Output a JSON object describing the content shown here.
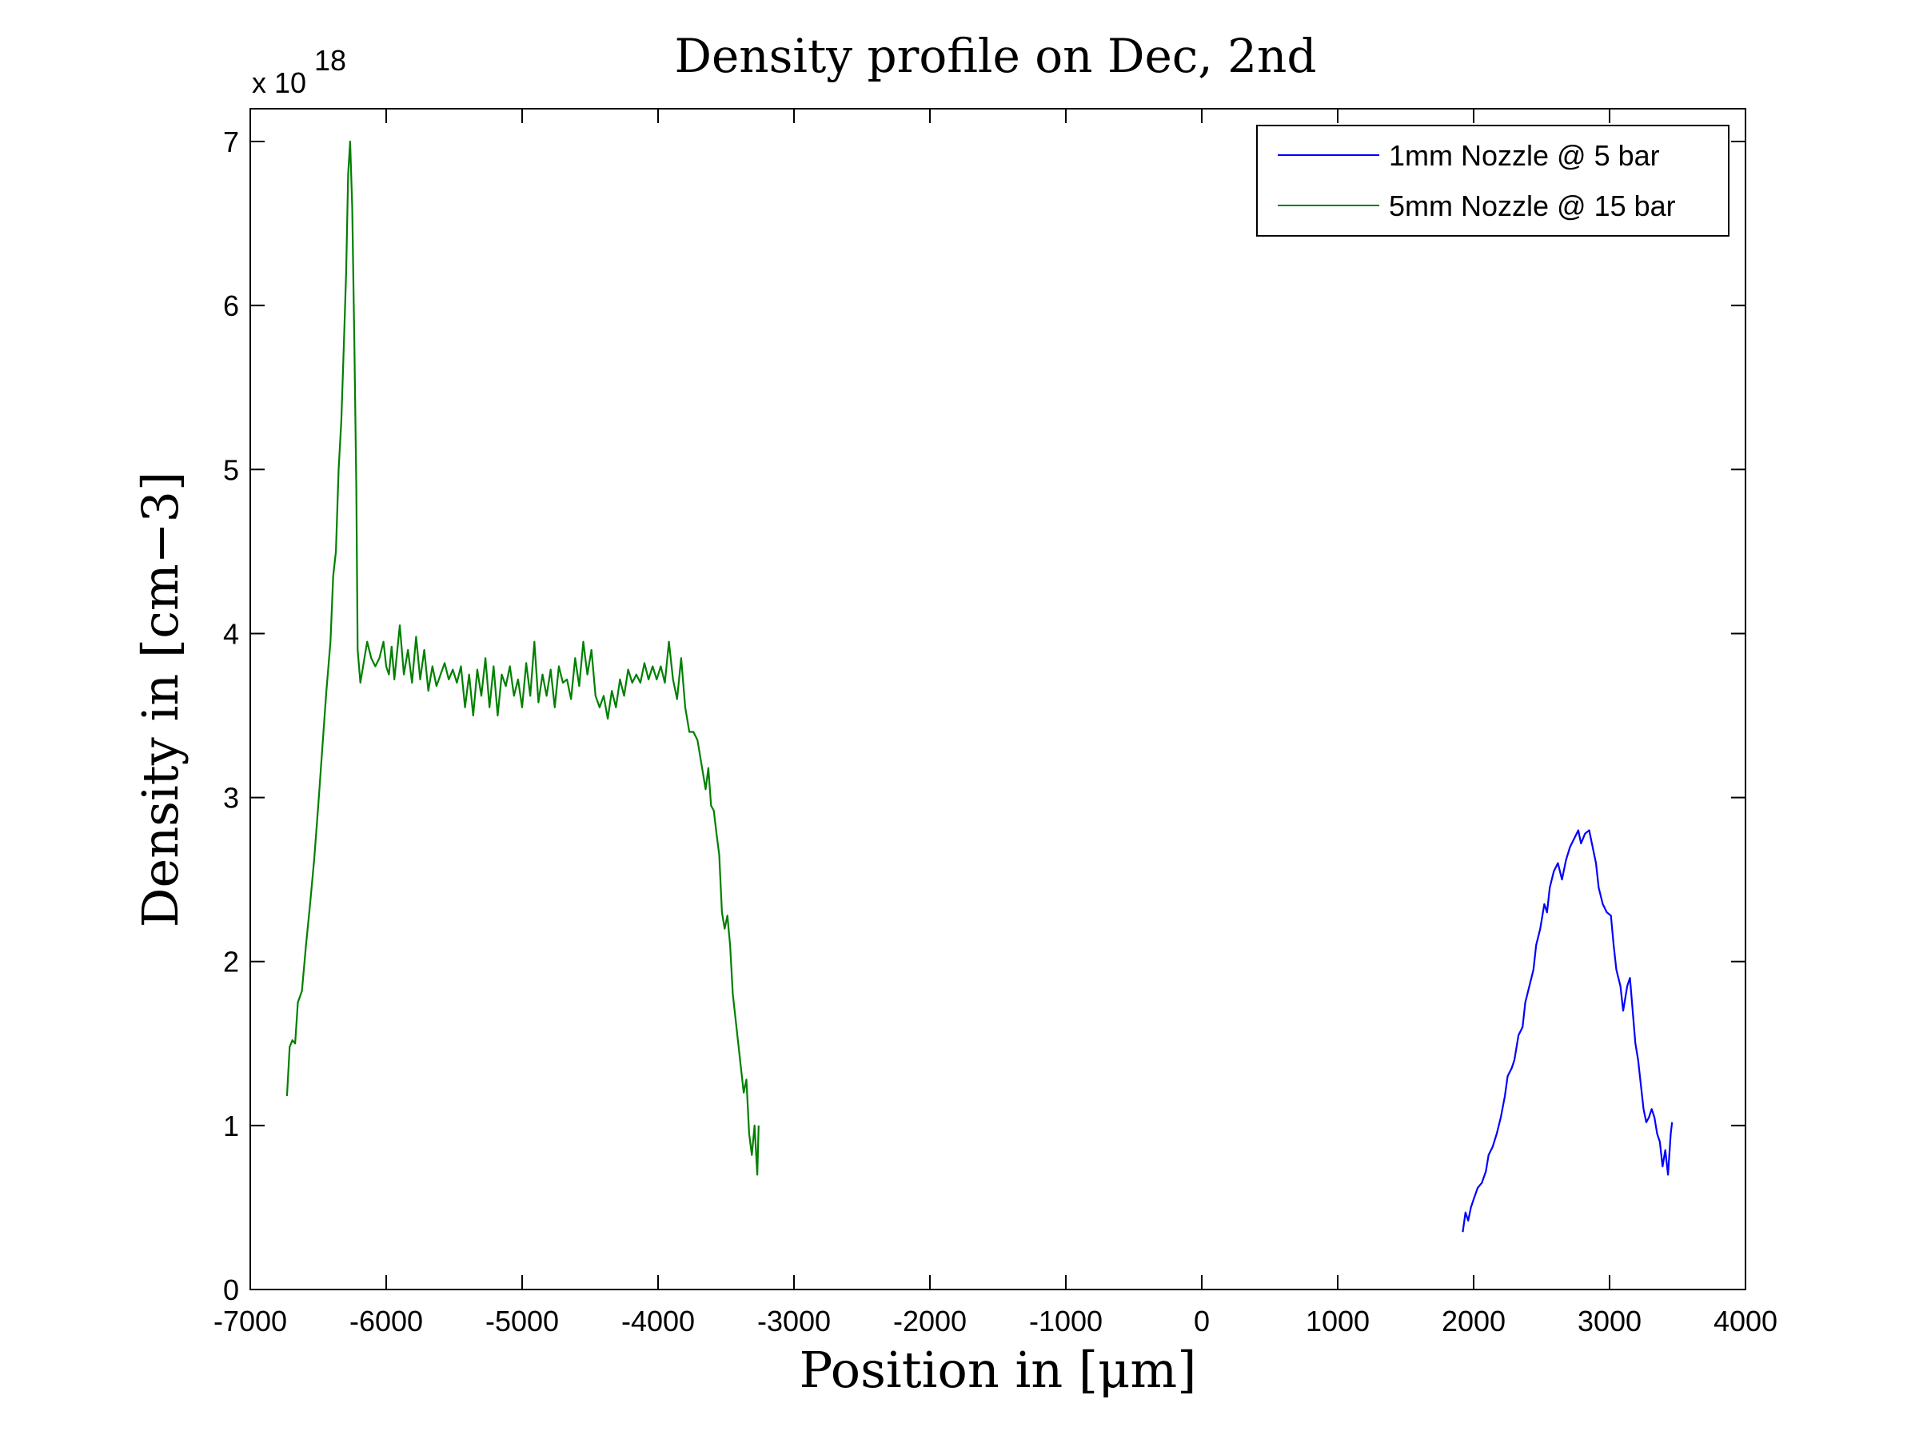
{
  "chart_data": {
    "type": "line",
    "title": "Density profile on Dec, 2nd",
    "xlabel": "Position in [μm]",
    "ylabel": "Density in [cm−3]",
    "y_exponent_label": "x 10",
    "y_exponent_power": "18",
    "xlim": [
      -7000,
      4000
    ],
    "ylim": [
      0,
      7.2
    ],
    "xticks": [
      -7000,
      -6000,
      -5000,
      -4000,
      -3000,
      -2000,
      -1000,
      0,
      1000,
      2000,
      3000,
      4000
    ],
    "yticks": [
      0,
      1,
      2,
      3,
      4,
      5,
      6,
      7
    ],
    "legend_position": "top-right",
    "grid": false,
    "series": [
      {
        "name": "1mm Nozzle @ 5 bar",
        "color": "#0000ff",
        "points": [
          [
            1920,
            0.35
          ],
          [
            1940,
            0.47
          ],
          [
            1960,
            0.42
          ],
          [
            1980,
            0.5
          ],
          [
            2000,
            0.55
          ],
          [
            2030,
            0.62
          ],
          [
            2060,
            0.65
          ],
          [
            2090,
            0.72
          ],
          [
            2110,
            0.82
          ],
          [
            2140,
            0.87
          ],
          [
            2170,
            0.95
          ],
          [
            2200,
            1.05
          ],
          [
            2230,
            1.18
          ],
          [
            2250,
            1.3
          ],
          [
            2280,
            1.35
          ],
          [
            2300,
            1.4
          ],
          [
            2330,
            1.55
          ],
          [
            2360,
            1.6
          ],
          [
            2380,
            1.75
          ],
          [
            2410,
            1.85
          ],
          [
            2440,
            1.95
          ],
          [
            2460,
            2.1
          ],
          [
            2490,
            2.2
          ],
          [
            2520,
            2.35
          ],
          [
            2540,
            2.3
          ],
          [
            2560,
            2.45
          ],
          [
            2590,
            2.55
          ],
          [
            2620,
            2.6
          ],
          [
            2650,
            2.5
          ],
          [
            2680,
            2.62
          ],
          [
            2710,
            2.7
          ],
          [
            2740,
            2.75
          ],
          [
            2770,
            2.8
          ],
          [
            2790,
            2.72
          ],
          [
            2820,
            2.78
          ],
          [
            2850,
            2.8
          ],
          [
            2870,
            2.72
          ],
          [
            2900,
            2.6
          ],
          [
            2920,
            2.45
          ],
          [
            2950,
            2.35
          ],
          [
            2980,
            2.3
          ],
          [
            3010,
            2.28
          ],
          [
            3030,
            2.1
          ],
          [
            3050,
            1.95
          ],
          [
            3080,
            1.85
          ],
          [
            3100,
            1.7
          ],
          [
            3130,
            1.85
          ],
          [
            3150,
            1.9
          ],
          [
            3170,
            1.7
          ],
          [
            3190,
            1.5
          ],
          [
            3210,
            1.4
          ],
          [
            3230,
            1.25
          ],
          [
            3250,
            1.1
          ],
          [
            3270,
            1.02
          ],
          [
            3290,
            1.05
          ],
          [
            3310,
            1.1
          ],
          [
            3330,
            1.05
          ],
          [
            3350,
            0.95
          ],
          [
            3370,
            0.9
          ],
          [
            3390,
            0.75
          ],
          [
            3410,
            0.85
          ],
          [
            3430,
            0.7
          ],
          [
            3450,
            0.95
          ],
          [
            3460,
            1.02
          ]
        ]
      },
      {
        "name": "5mm Nozzle @ 15 bar",
        "color": "#008000",
        "points": [
          [
            -6730,
            1.18
          ],
          [
            -6710,
            1.48
          ],
          [
            -6690,
            1.52
          ],
          [
            -6670,
            1.5
          ],
          [
            -6650,
            1.75
          ],
          [
            -6620,
            1.82
          ],
          [
            -6590,
            2.1
          ],
          [
            -6560,
            2.35
          ],
          [
            -6530,
            2.62
          ],
          [
            -6500,
            2.95
          ],
          [
            -6470,
            3.3
          ],
          [
            -6440,
            3.65
          ],
          [
            -6410,
            3.95
          ],
          [
            -6390,
            4.35
          ],
          [
            -6370,
            4.5
          ],
          [
            -6350,
            5.0
          ],
          [
            -6330,
            5.3
          ],
          [
            -6310,
            5.8
          ],
          [
            -6295,
            6.2
          ],
          [
            -6280,
            6.8
          ],
          [
            -6265,
            7.0
          ],
          [
            -6250,
            6.6
          ],
          [
            -6235,
            5.8
          ],
          [
            -6220,
            4.9
          ],
          [
            -6210,
            3.9
          ],
          [
            -6190,
            3.7
          ],
          [
            -6170,
            3.8
          ],
          [
            -6140,
            3.95
          ],
          [
            -6110,
            3.85
          ],
          [
            -6080,
            3.8
          ],
          [
            -6050,
            3.85
          ],
          [
            -6020,
            3.95
          ],
          [
            -6000,
            3.8
          ],
          [
            -5980,
            3.75
          ],
          [
            -5960,
            3.92
          ],
          [
            -5940,
            3.72
          ],
          [
            -5900,
            4.05
          ],
          [
            -5870,
            3.75
          ],
          [
            -5840,
            3.9
          ],
          [
            -5810,
            3.7
          ],
          [
            -5780,
            3.98
          ],
          [
            -5750,
            3.72
          ],
          [
            -5720,
            3.9
          ],
          [
            -5690,
            3.65
          ],
          [
            -5660,
            3.8
          ],
          [
            -5630,
            3.68
          ],
          [
            -5600,
            3.75
          ],
          [
            -5570,
            3.82
          ],
          [
            -5540,
            3.72
          ],
          [
            -5510,
            3.78
          ],
          [
            -5480,
            3.7
          ],
          [
            -5450,
            3.8
          ],
          [
            -5420,
            3.55
          ],
          [
            -5390,
            3.75
          ],
          [
            -5360,
            3.5
          ],
          [
            -5330,
            3.78
          ],
          [
            -5300,
            3.62
          ],
          [
            -5270,
            3.85
          ],
          [
            -5240,
            3.55
          ],
          [
            -5210,
            3.8
          ],
          [
            -5180,
            3.5
          ],
          [
            -5150,
            3.75
          ],
          [
            -5120,
            3.68
          ],
          [
            -5090,
            3.8
          ],
          [
            -5060,
            3.62
          ],
          [
            -5030,
            3.72
          ],
          [
            -5000,
            3.55
          ],
          [
            -4970,
            3.82
          ],
          [
            -4940,
            3.62
          ],
          [
            -4910,
            3.95
          ],
          [
            -4880,
            3.58
          ],
          [
            -4850,
            3.75
          ],
          [
            -4820,
            3.62
          ],
          [
            -4790,
            3.78
          ],
          [
            -4760,
            3.55
          ],
          [
            -4730,
            3.8
          ],
          [
            -4700,
            3.7
          ],
          [
            -4670,
            3.72
          ],
          [
            -4640,
            3.6
          ],
          [
            -4610,
            3.85
          ],
          [
            -4580,
            3.68
          ],
          [
            -4550,
            3.95
          ],
          [
            -4520,
            3.75
          ],
          [
            -4490,
            3.9
          ],
          [
            -4460,
            3.62
          ],
          [
            -4430,
            3.55
          ],
          [
            -4400,
            3.62
          ],
          [
            -4370,
            3.48
          ],
          [
            -4340,
            3.65
          ],
          [
            -4310,
            3.55
          ],
          [
            -4280,
            3.72
          ],
          [
            -4250,
            3.62
          ],
          [
            -4220,
            3.78
          ],
          [
            -4190,
            3.7
          ],
          [
            -4160,
            3.75
          ],
          [
            -4130,
            3.7
          ],
          [
            -4100,
            3.82
          ],
          [
            -4070,
            3.72
          ],
          [
            -4040,
            3.8
          ],
          [
            -4010,
            3.72
          ],
          [
            -3980,
            3.8
          ],
          [
            -3950,
            3.7
          ],
          [
            -3920,
            3.95
          ],
          [
            -3890,
            3.72
          ],
          [
            -3860,
            3.6
          ],
          [
            -3830,
            3.85
          ],
          [
            -3800,
            3.55
          ],
          [
            -3770,
            3.4
          ],
          [
            -3740,
            3.4
          ],
          [
            -3710,
            3.35
          ],
          [
            -3680,
            3.2
          ],
          [
            -3650,
            3.05
          ],
          [
            -3630,
            3.18
          ],
          [
            -3610,
            2.95
          ],
          [
            -3590,
            2.92
          ],
          [
            -3570,
            2.78
          ],
          [
            -3550,
            2.65
          ],
          [
            -3530,
            2.3
          ],
          [
            -3510,
            2.2
          ],
          [
            -3490,
            2.28
          ],
          [
            -3470,
            2.1
          ],
          [
            -3450,
            1.8
          ],
          [
            -3430,
            1.65
          ],
          [
            -3410,
            1.5
          ],
          [
            -3390,
            1.35
          ],
          [
            -3370,
            1.2
          ],
          [
            -3350,
            1.28
          ],
          [
            -3330,
            0.95
          ],
          [
            -3310,
            0.82
          ],
          [
            -3290,
            1.0
          ],
          [
            -3270,
            0.7
          ],
          [
            -3260,
            1.0
          ]
        ]
      }
    ]
  }
}
